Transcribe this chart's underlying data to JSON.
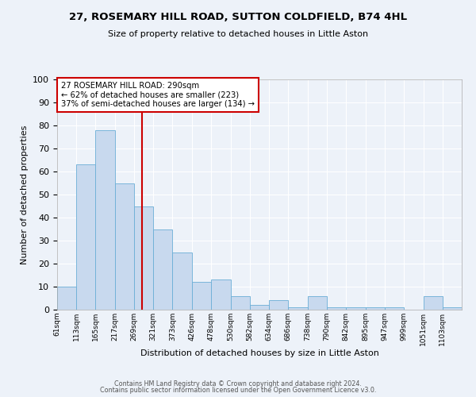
{
  "title": "27, ROSEMARY HILL ROAD, SUTTON COLDFIELD, B74 4HL",
  "subtitle": "Size of property relative to detached houses in Little Aston",
  "xlabel": "Distribution of detached houses by size in Little Aston",
  "ylabel": "Number of detached properties",
  "bar_color": "#c8d9ee",
  "bar_edge_color": "#6aaed6",
  "background_color": "#edf2f9",
  "grid_color": "#ffffff",
  "vline_x": 290,
  "vline_color": "#cc0000",
  "annotation_text": "27 ROSEMARY HILL ROAD: 290sqm\n← 62% of detached houses are smaller (223)\n37% of semi-detached houses are larger (134) →",
  "annotation_box_color": "#cc0000",
  "footer_line1": "Contains HM Land Registry data © Crown copyright and database right 2024.",
  "footer_line2": "Contains public sector information licensed under the Open Government Licence v3.0.",
  "categories": [
    "61sqm",
    "113sqm",
    "165sqm",
    "217sqm",
    "269sqm",
    "321sqm",
    "373sqm",
    "426sqm",
    "478sqm",
    "530sqm",
    "582sqm",
    "634sqm",
    "686sqm",
    "738sqm",
    "790sqm",
    "842sqm",
    "895sqm",
    "947sqm",
    "999sqm",
    "1051sqm",
    "1103sqm"
  ],
  "values": [
    10,
    63,
    78,
    55,
    45,
    35,
    25,
    12,
    13,
    6,
    2,
    4,
    1,
    6,
    1,
    1,
    1,
    1,
    0,
    6,
    1
  ],
  "bin_edges": [
    61,
    113,
    165,
    217,
    269,
    321,
    373,
    426,
    478,
    530,
    582,
    634,
    686,
    738,
    790,
    842,
    895,
    947,
    999,
    1051,
    1103,
    1155
  ],
  "ylim": [
    0,
    100
  ],
  "yticks": [
    0,
    10,
    20,
    30,
    40,
    50,
    60,
    70,
    80,
    90,
    100
  ]
}
